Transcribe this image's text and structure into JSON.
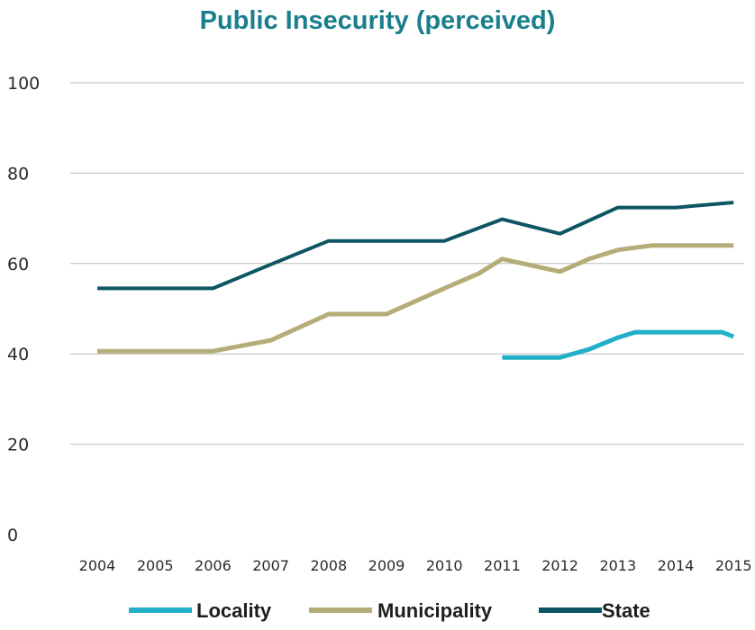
{
  "colors": {
    "title": "#1a7f8c",
    "grid": "#bdbdbd",
    "locality": "#22afc9",
    "municipality": "#b5ad78",
    "state": "#0e5563"
  },
  "chart_data": {
    "type": "line",
    "title": "Public Insecurity (perceived)",
    "xlabel": "",
    "ylabel": "",
    "ylim": [
      0,
      100
    ],
    "yticks": [
      0,
      20,
      40,
      60,
      80,
      100
    ],
    "grid": true,
    "legend_position": "bottom",
    "categories": [
      "2004",
      "2005",
      "2006",
      "2007",
      "2008",
      "2009",
      "2010",
      "2011",
      "2012",
      "2013",
      "2014",
      "2015"
    ],
    "series": [
      {
        "name": "Locality",
        "color_key": "locality",
        "points": [
          {
            "x": 2011,
            "y": 39.2
          },
          {
            "x": 2012,
            "y": 39.2
          },
          {
            "x": 2012.5,
            "y": 41
          },
          {
            "x": 2013,
            "y": 43.6
          },
          {
            "x": 2013.3,
            "y": 44.8
          },
          {
            "x": 2014,
            "y": 44.8
          },
          {
            "x": 2014.8,
            "y": 44.8
          },
          {
            "x": 2015,
            "y": 43.8
          }
        ]
      },
      {
        "name": "Municipality",
        "color_key": "municipality",
        "points": [
          {
            "x": 2004,
            "y": 40.6
          },
          {
            "x": 2006,
            "y": 40.6
          },
          {
            "x": 2007,
            "y": 43
          },
          {
            "x": 2008,
            "y": 48.8
          },
          {
            "x": 2009,
            "y": 48.8
          },
          {
            "x": 2010,
            "y": 54.5
          },
          {
            "x": 2010.6,
            "y": 57.8
          },
          {
            "x": 2011,
            "y": 61
          },
          {
            "x": 2012,
            "y": 58.2
          },
          {
            "x": 2012.5,
            "y": 61
          },
          {
            "x": 2013,
            "y": 63
          },
          {
            "x": 2013.6,
            "y": 64
          },
          {
            "x": 2014,
            "y": 64
          },
          {
            "x": 2015,
            "y": 64
          }
        ]
      },
      {
        "name": "State",
        "color_key": "state",
        "points": [
          {
            "x": 2004,
            "y": 54.5
          },
          {
            "x": 2006,
            "y": 54.5
          },
          {
            "x": 2007,
            "y": 59.8
          },
          {
            "x": 2008,
            "y": 65
          },
          {
            "x": 2009,
            "y": 65
          },
          {
            "x": 2010,
            "y": 65
          },
          {
            "x": 2011,
            "y": 69.8
          },
          {
            "x": 2012,
            "y": 66.6
          },
          {
            "x": 2013,
            "y": 72.4
          },
          {
            "x": 2014,
            "y": 72.4
          },
          {
            "x": 2015,
            "y": 73.5
          }
        ]
      }
    ]
  }
}
